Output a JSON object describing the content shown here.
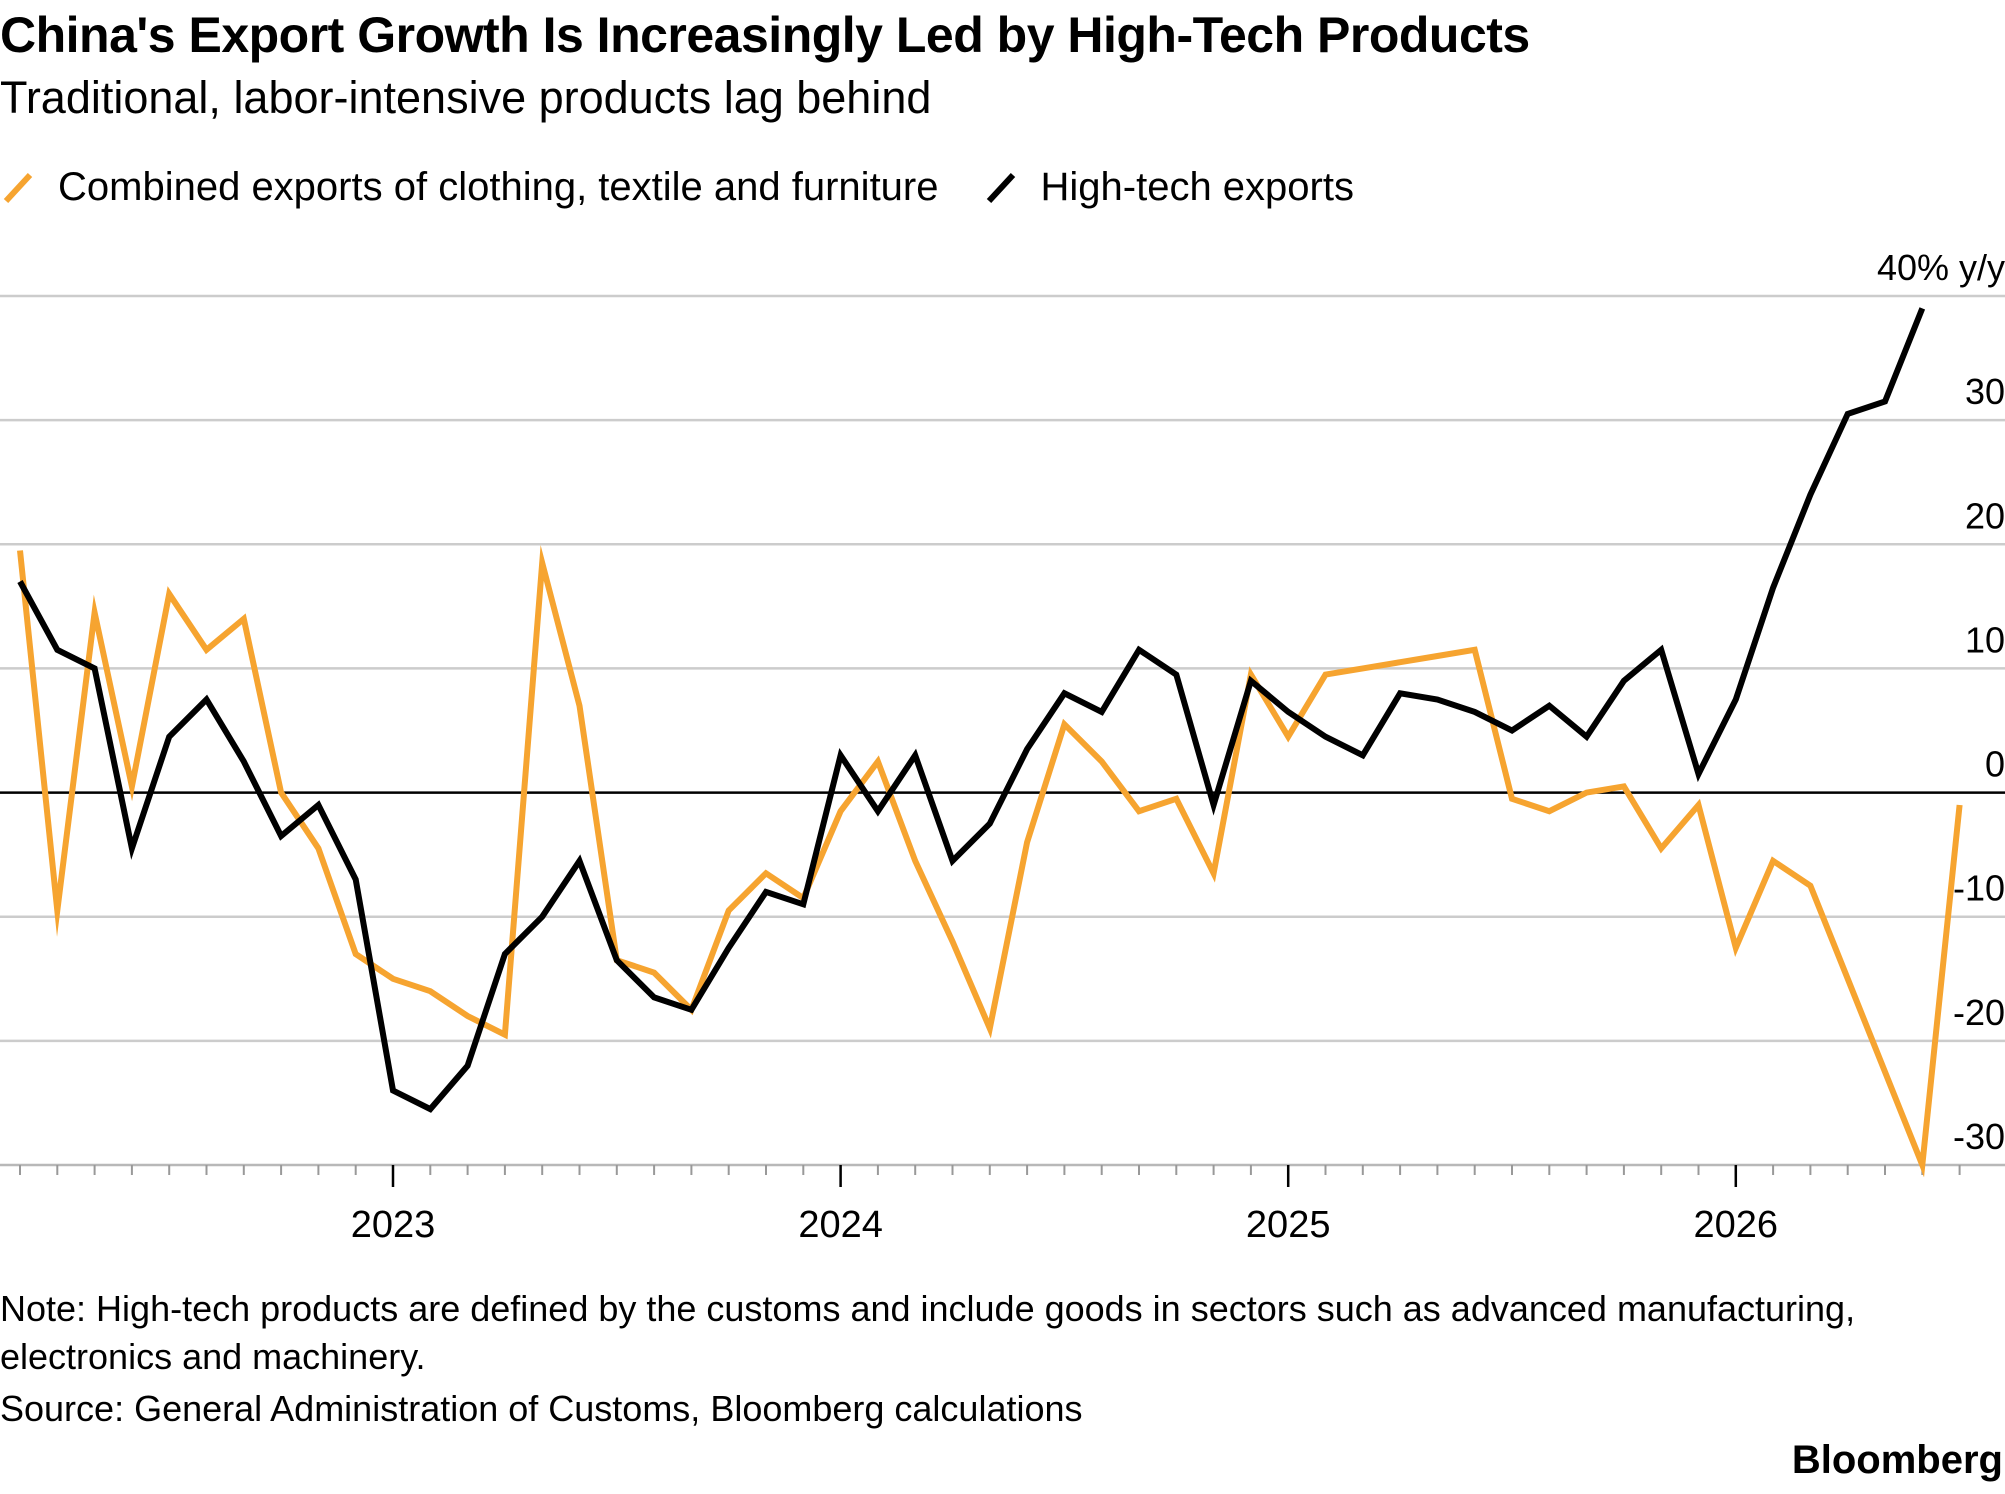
{
  "title": "China's Export Growth Is Increasingly Led by High-Tech Products",
  "subtitle": "Traditional, labor-intensive products lag behind",
  "note": "Note: High-tech products are defined by the customs and include goods in sectors such as advanced manufacturing, electronics and machinery.",
  "source": "Source: General Administration of Customs, Bloomberg calculations",
  "brand": "Bloomberg",
  "colors": {
    "orange": "#f6a430",
    "black": "#000000",
    "grid": "#cccccc"
  },
  "chart_data": {
    "type": "line",
    "x_start": "2022-03",
    "x_ticks": [
      "2023",
      "2024",
      "2025",
      "2026"
    ],
    "ylim": [
      -30,
      40
    ],
    "y_ticks": [
      -30,
      -20,
      -10,
      0,
      10,
      20,
      30,
      40
    ],
    "y_tick_labels": [
      "-30",
      "-20",
      "-10",
      "0",
      "10",
      "20",
      "30",
      "40% y/y"
    ],
    "grid": true,
    "legend_position": "top-left",
    "series": [
      {
        "name": "Combined exports of clothing, textile and furniture",
        "color": "#f6a430",
        "values": [
          19.5,
          -9.5,
          14.5,
          0.5,
          16,
          11.5,
          14,
          0,
          -4.5,
          -13,
          -15,
          -16,
          -18,
          -19.5,
          18.5,
          7,
          -13.5,
          -14.5,
          -17.5,
          -9.5,
          -6.5,
          -8.5,
          -1.5,
          2.5,
          -5.5,
          -12,
          -19,
          -4,
          5.5,
          2.5,
          -1.5,
          -0.5,
          -6.5,
          9.5,
          4.5,
          9.5,
          10,
          10.5,
          11,
          11.5,
          -0.5,
          -1.5,
          0,
          0.5,
          -4.5,
          -1,
          -12.5,
          -5.5,
          -7.5,
          -15,
          -22.5,
          -30,
          -1
        ]
      },
      {
        "name": "High-tech exports",
        "color": "#000000",
        "values": [
          17,
          11.5,
          10,
          -4.5,
          4.5,
          7.5,
          2.5,
          -3.5,
          -1,
          -7,
          -24,
          -25.5,
          -22,
          -13,
          -10,
          -5.5,
          -13.5,
          -16.5,
          -17.5,
          -12.5,
          -8,
          -9,
          3,
          -1.5,
          3,
          -5.5,
          -2.5,
          3.5,
          8,
          6.5,
          11.5,
          9.5,
          -1,
          9,
          6.5,
          4.5,
          3,
          8,
          7.5,
          6.5,
          5,
          7,
          4.5,
          9,
          11.5,
          1.5,
          7.5,
          16.5,
          24,
          30.5,
          31.5,
          39
        ]
      }
    ]
  }
}
